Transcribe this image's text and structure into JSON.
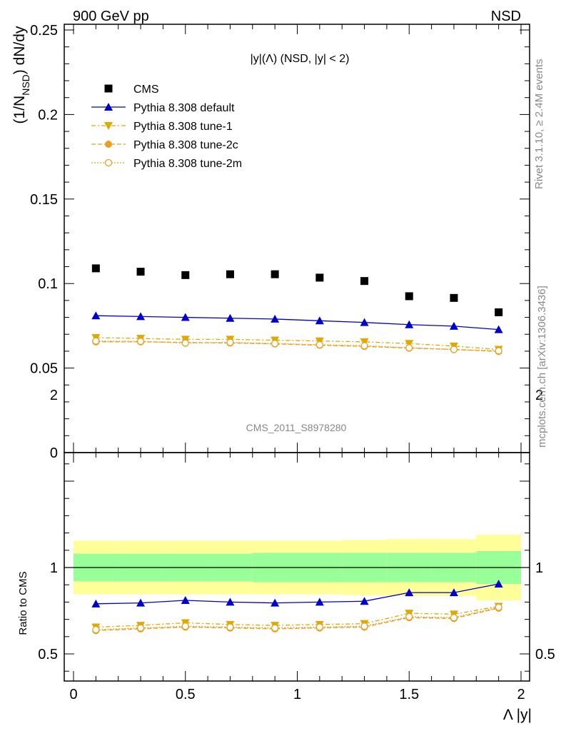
{
  "header": {
    "left": "900 GeV pp",
    "right": "NSD"
  },
  "side_text": {
    "rivet": "Rivet 3.1.10, ≥ 2.4M events",
    "mcplots": "mcplots.cern.ch [arXiv:1306.3436]"
  },
  "analysis_id": "CMS_2011_S8978280",
  "chart_data": [
    {
      "type": "scatter",
      "title": "|y|(Λ) (NSD, |y| < 2)",
      "ylabel": "(1/N_NSD) dN/dy",
      "xlim": [
        0,
        2
      ],
      "ylim": [
        0,
        0.25
      ],
      "yticks": [
        "0",
        "0.05",
        "0.1",
        "0.15",
        "0.2",
        "0.25"
      ],
      "legend_position": "top-left",
      "x": [
        0.1,
        0.3,
        0.5,
        0.7,
        0.9,
        1.1,
        1.3,
        1.5,
        1.7,
        1.9
      ],
      "series": [
        {
          "name": "CMS",
          "color": "#000000",
          "marker": "square",
          "values": [
            0.109,
            0.107,
            0.105,
            0.1055,
            0.1055,
            0.1035,
            0.1015,
            0.0925,
            0.0915,
            0.083
          ]
        },
        {
          "name": "Pythia 8.308 default",
          "color": "#0000cc",
          "marker": "triangle-up",
          "line": "solid",
          "values": [
            0.081,
            0.0805,
            0.08,
            0.0795,
            0.079,
            0.078,
            0.077,
            0.0757,
            0.0748,
            0.0728
          ]
        },
        {
          "name": "Pythia 8.308 tune-1",
          "color": "#ddaa00",
          "marker": "triangle-down",
          "line": "dashdot",
          "values": [
            0.068,
            0.0675,
            0.067,
            0.067,
            0.0665,
            0.066,
            0.0655,
            0.0645,
            0.063,
            0.061
          ]
        },
        {
          "name": "Pythia 8.308 tune-2c",
          "color": "#e8a020",
          "marker": "circle-filled",
          "line": "dashed",
          "values": [
            0.0655,
            0.0655,
            0.0652,
            0.0648,
            0.0643,
            0.0635,
            0.0628,
            0.0618,
            0.061,
            0.0598
          ]
        },
        {
          "name": "Pythia 8.308 tune-2m",
          "color": "#e8a020",
          "marker": "circle-open",
          "line": "dotted",
          "values": [
            0.066,
            0.0658,
            0.0648,
            0.0652,
            0.0645,
            0.0638,
            0.0632,
            0.062,
            0.061,
            0.0602
          ]
        }
      ]
    },
    {
      "type": "line",
      "ylabel": "Ratio to CMS",
      "xlabel": "Λ |y|",
      "xlim": [
        0,
        2
      ],
      "ylim": [
        0.35,
        2.35
      ],
      "xticks": [
        "0",
        "0.5",
        "1",
        "1.5",
        "2"
      ],
      "yticks": [
        "0.5",
        "1",
        "2"
      ],
      "bins": [
        [
          0,
          0.2
        ],
        [
          0.2,
          0.4
        ],
        [
          0.4,
          0.6
        ],
        [
          0.6,
          0.8
        ],
        [
          0.8,
          1.0
        ],
        [
          1.0,
          1.2
        ],
        [
          1.2,
          1.4
        ],
        [
          1.4,
          1.6
        ],
        [
          1.6,
          1.8
        ],
        [
          1.8,
          2.0
        ]
      ],
      "band_outer": [
        0.155,
        0.155,
        0.155,
        0.155,
        0.155,
        0.155,
        0.16,
        0.165,
        0.165,
        0.19
      ],
      "band_inner": [
        0.08,
        0.08,
        0.08,
        0.08,
        0.085,
        0.085,
        0.085,
        0.085,
        0.085,
        0.095
      ],
      "band_colors": {
        "outer": "#ffff99",
        "inner": "#99ff99"
      },
      "x": [
        0.1,
        0.3,
        0.5,
        0.7,
        0.9,
        1.1,
        1.3,
        1.5,
        1.7,
        1.9
      ],
      "series": [
        {
          "name": "Pythia 8.308 default",
          "color": "#0000cc",
          "marker": "triangle-up",
          "line": "solid",
          "values": [
            0.79,
            0.795,
            0.81,
            0.8,
            0.795,
            0.8,
            0.805,
            0.855,
            0.855,
            0.905
          ]
        },
        {
          "name": "Pythia 8.308 tune-1",
          "color": "#ddaa00",
          "marker": "triangle-down",
          "line": "dashdot",
          "values": [
            0.655,
            0.665,
            0.68,
            0.67,
            0.665,
            0.67,
            0.675,
            0.735,
            0.73,
            0.775
          ]
        },
        {
          "name": "Pythia 8.308 tune-2c",
          "color": "#e8a020",
          "marker": "circle-filled",
          "line": "dashed",
          "values": [
            0.635,
            0.645,
            0.655,
            0.65,
            0.645,
            0.65,
            0.655,
            0.71,
            0.705,
            0.765
          ]
        },
        {
          "name": "Pythia 8.308 tune-2m",
          "color": "#e8a020",
          "marker": "circle-open",
          "line": "dotted",
          "values": [
            0.64,
            0.65,
            0.66,
            0.655,
            0.65,
            0.655,
            0.66,
            0.715,
            0.71,
            0.77
          ]
        }
      ]
    }
  ]
}
